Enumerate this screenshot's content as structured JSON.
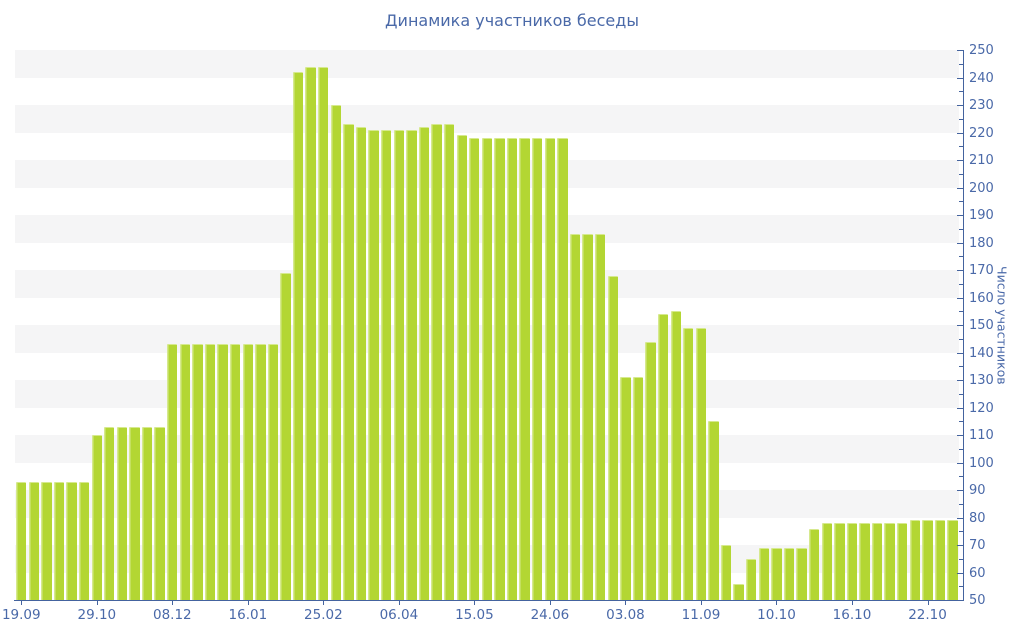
{
  "colors": {
    "bar_fill": "#b3d633",
    "bar_edge": "#d6e98e",
    "band": "#f5f5f6",
    "axis": "#44639e",
    "text_blue": "#4a69a8",
    "background": "#ffffff"
  },
  "chart_data": {
    "type": "bar",
    "title": "Динамика участников беседы",
    "xlabel": "",
    "ylabel": "Число участников",
    "ylim": [
      50,
      250
    ],
    "y_major_step": 10,
    "y_minor_step": 5,
    "grid": "alternating-horizontal-bands",
    "legend": "none",
    "x_ticks": [
      {
        "index": 0,
        "label": "19.09"
      },
      {
        "index": 6,
        "label": "29.10"
      },
      {
        "index": 12,
        "label": "08.12"
      },
      {
        "index": 18,
        "label": "16.01"
      },
      {
        "index": 24,
        "label": "25.02"
      },
      {
        "index": 30,
        "label": "06.04"
      },
      {
        "index": 36,
        "label": "15.05"
      },
      {
        "index": 42,
        "label": "24.06"
      },
      {
        "index": 48,
        "label": "03.08"
      },
      {
        "index": 54,
        "label": "11.09"
      },
      {
        "index": 60,
        "label": "10.10"
      },
      {
        "index": 66,
        "label": "16.10"
      },
      {
        "index": 72,
        "label": "22.10"
      }
    ],
    "values": [
      93,
      93,
      93,
      93,
      93,
      93,
      110,
      113,
      113,
      113,
      113,
      113,
      143,
      143,
      143,
      143,
      143,
      143,
      143,
      143,
      143,
      169,
      242,
      244,
      244,
      230,
      223,
      222,
      221,
      221,
      221,
      221,
      222,
      223,
      223,
      219,
      218,
      218,
      218,
      218,
      218,
      218,
      218,
      218,
      183,
      183,
      183,
      168,
      131,
      131,
      144,
      154,
      155,
      149,
      149,
      115,
      70,
      56,
      65,
      69,
      69,
      69,
      69,
      76,
      78,
      78,
      78,
      78,
      78,
      78,
      78,
      79,
      79,
      79,
      79
    ]
  }
}
